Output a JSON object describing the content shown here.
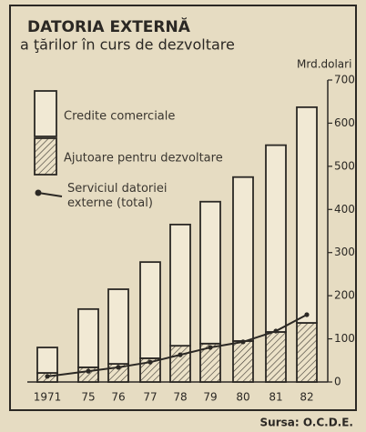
{
  "chart_data": {
    "type": "stacked_bar_line",
    "title": "DATORIA EXTERNĂ",
    "subtitle": "a ţărilor în curs de dezvoltare",
    "y_label": "Mrd.dolari",
    "source": "Sursa: O.C.D.E.",
    "categories": [
      "1971",
      "75",
      "76",
      "77",
      "78",
      "79",
      "80",
      "81",
      "82"
    ],
    "series": [
      {
        "name": "Credite comerciale",
        "type": "bar",
        "color": "#f1e9d4",
        "values": [
          59,
          135,
          173,
          223,
          281,
          329,
          380,
          433,
          500
        ]
      },
      {
        "name": "Ajutoare pentru dezvoltare",
        "type": "bar",
        "color": "hatch",
        "values": [
          21,
          34,
          42,
          55,
          84,
          89,
          95,
          116,
          137
        ]
      },
      {
        "name": "Serviciul datoriei externe (total)",
        "type": "line",
        "color": "#2b2824",
        "values": [
          13,
          25,
          34,
          46,
          63,
          80,
          93,
          118,
          156
        ]
      }
    ],
    "ylim": [
      0,
      700
    ],
    "yticks": [
      0,
      100,
      200,
      300,
      400,
      500,
      600,
      700
    ]
  }
}
